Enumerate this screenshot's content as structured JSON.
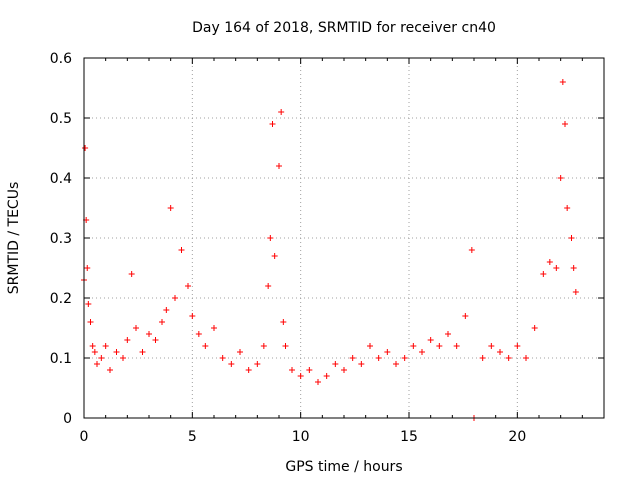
{
  "chart_data": {
    "type": "scatter",
    "title": "Day 164 of 2018, SRMTID for receiver cn40",
    "xlabel": "GPS time / hours",
    "ylabel": "SRMTID / TECUs",
    "xlim": [
      0,
      24
    ],
    "ylim": [
      0,
      0.6
    ],
    "x_ticks": [
      0,
      5,
      10,
      15,
      20
    ],
    "y_ticks": [
      0,
      0.1,
      0.2,
      0.3,
      0.4,
      0.5,
      0.6
    ],
    "x_tick_labels": [
      "0",
      "5",
      "10",
      "15",
      "20"
    ],
    "y_tick_labels": [
      "0",
      "0.1",
      "0.2",
      "0.3",
      "0.4",
      "0.5",
      "0.6"
    ],
    "grid": true,
    "marker": "+",
    "color": "#ff0000",
    "series": [
      {
        "name": "SRMTID",
        "x": [
          0.0,
          0.05,
          0.1,
          0.15,
          0.2,
          0.3,
          0.4,
          0.5,
          0.6,
          0.8,
          1.0,
          1.2,
          1.5,
          1.8,
          2.0,
          2.2,
          2.4,
          2.7,
          3.0,
          3.3,
          3.6,
          3.8,
          4.0,
          4.2,
          4.5,
          4.8,
          5.0,
          5.3,
          5.6,
          6.0,
          6.4,
          6.8,
          7.2,
          7.6,
          8.0,
          8.3,
          8.5,
          8.6,
          8.7,
          8.8,
          9.0,
          9.1,
          9.2,
          9.3,
          9.6,
          10.0,
          10.4,
          10.8,
          11.2,
          11.6,
          12.0,
          12.4,
          12.8,
          13.2,
          13.6,
          14.0,
          14.4,
          14.8,
          15.2,
          15.6,
          16.0,
          16.4,
          16.8,
          17.2,
          17.6,
          17.9,
          18.0,
          18.4,
          18.8,
          19.2,
          19.6,
          20.0,
          20.4,
          20.8,
          21.2,
          21.5,
          21.8,
          22.0,
          22.1,
          22.2,
          22.3,
          22.5,
          22.6,
          22.7
        ],
        "y": [
          0.23,
          0.45,
          0.33,
          0.25,
          0.19,
          0.16,
          0.12,
          0.11,
          0.09,
          0.1,
          0.12,
          0.08,
          0.11,
          0.1,
          0.13,
          0.24,
          0.15,
          0.11,
          0.14,
          0.13,
          0.16,
          0.18,
          0.35,
          0.2,
          0.28,
          0.22,
          0.17,
          0.14,
          0.12,
          0.15,
          0.1,
          0.09,
          0.11,
          0.08,
          0.09,
          0.12,
          0.22,
          0.3,
          0.49,
          0.27,
          0.42,
          0.51,
          0.16,
          0.12,
          0.08,
          0.07,
          0.08,
          0.06,
          0.07,
          0.09,
          0.08,
          0.1,
          0.09,
          0.12,
          0.1,
          0.11,
          0.09,
          0.1,
          0.12,
          0.11,
          0.13,
          0.12,
          0.14,
          0.12,
          0.17,
          0.28,
          0.0,
          0.1,
          0.12,
          0.11,
          0.1,
          0.12,
          0.1,
          0.15,
          0.24,
          0.26,
          0.25,
          0.4,
          0.56,
          0.49,
          0.35,
          0.3,
          0.25,
          0.21
        ]
      }
    ]
  }
}
